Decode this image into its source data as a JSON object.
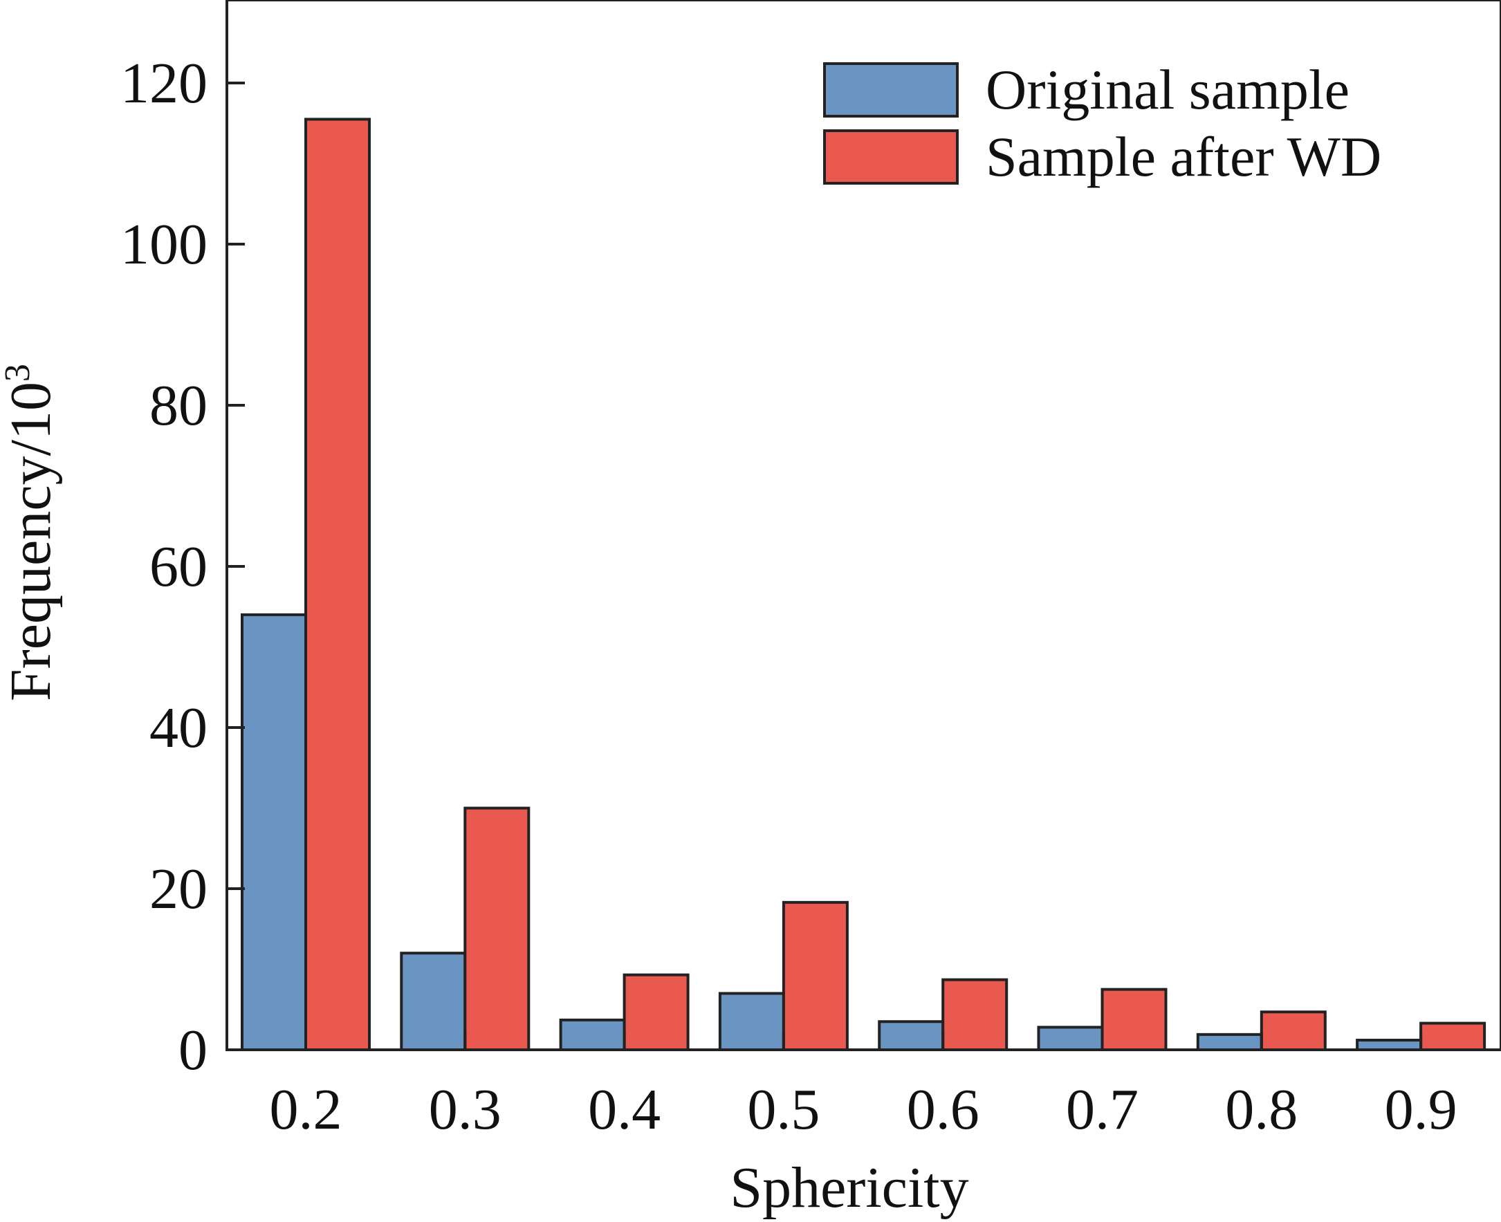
{
  "chart_data": {
    "type": "bar",
    "xlabel": "Sphericity",
    "ylabel": "Frequency/10",
    "ylabel_superscript": "3",
    "categories": [
      "0.2",
      "0.3",
      "0.4",
      "0.5",
      "0.6",
      "0.7",
      "0.8",
      "0.9"
    ],
    "ylim": [
      0,
      120
    ],
    "yticks": [
      "0",
      "20",
      "40",
      "60",
      "80",
      "100",
      "120"
    ],
    "grid": false,
    "legend_position": "top-right",
    "series": [
      {
        "name": "Original sample",
        "color": "#6a95c2",
        "values": [
          54,
          12,
          3.7,
          7,
          3.5,
          2.8,
          1.9,
          1.2
        ]
      },
      {
        "name": "Sample after WD",
        "color": "#e9594f",
        "values": [
          115.5,
          30,
          9.3,
          18.3,
          8.7,
          7.5,
          4.7,
          3.3
        ]
      }
    ]
  }
}
